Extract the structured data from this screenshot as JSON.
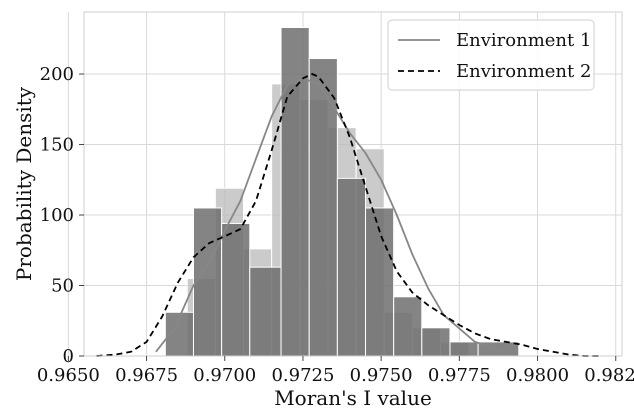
{
  "chart_data": {
    "type": "bar",
    "xlabel": "Moran's I value",
    "ylabel": "Probability Density",
    "xlim": [
      0.9655,
      0.9827
    ],
    "ylim": [
      0,
      244
    ],
    "x_ticks": [
      0.965,
      0.9675,
      0.97,
      0.9725,
      0.975,
      0.9775,
      0.98,
      0.9825
    ],
    "x_tick_labels": [
      "0.9650",
      "0.9675",
      "0.9700",
      "0.9725",
      "0.9750",
      "0.9775",
      "0.9800",
      "0.9825"
    ],
    "y_ticks": [
      0,
      50,
      100,
      150,
      200
    ],
    "y_tick_labels": [
      "0",
      "50",
      "100",
      "150",
      "200"
    ],
    "grid": true,
    "legend": {
      "position": "upper-right",
      "items": [
        "Environment 1",
        "Environment 2"
      ]
    },
    "series": [
      {
        "name": "Environment 1",
        "color": "#b9b9b9",
        "bars": [
          {
            "x0": 0.9688,
            "x1": 0.9697,
            "value": 55
          },
          {
            "x0": 0.9697,
            "x1": 0.9706,
            "value": 119
          },
          {
            "x0": 0.9706,
            "x1": 0.9715,
            "value": 76
          },
          {
            "x0": 0.9715,
            "x1": 0.9724,
            "value": 193
          },
          {
            "x0": 0.9724,
            "x1": 0.9733,
            "value": 182
          },
          {
            "x0": 0.9733,
            "x1": 0.9742,
            "value": 162
          },
          {
            "x0": 0.9742,
            "x1": 0.9751,
            "value": 147
          },
          {
            "x0": 0.9751,
            "x1": 0.976,
            "value": 31
          },
          {
            "x0": 0.976,
            "x1": 0.9769,
            "value": 20
          },
          {
            "x0": 0.9769,
            "x1": 0.9778,
            "value": 10
          }
        ],
        "kde": {
          "x": [
            0.9678,
            0.9684,
            0.969,
            0.9696,
            0.97,
            0.9705,
            0.971,
            0.9715,
            0.972,
            0.9725,
            0.973,
            0.9735,
            0.974,
            0.9745,
            0.975,
            0.9755,
            0.976,
            0.9765,
            0.977,
            0.978,
            0.979
          ],
          "y": [
            3,
            20,
            50,
            70,
            89,
            110,
            140,
            170,
            192,
            197,
            193,
            176,
            158,
            144,
            125,
            100,
            72,
            48,
            29,
            10,
            3
          ]
        }
      },
      {
        "name": "Environment 2",
        "color": "#6f6f6f",
        "bars": [
          {
            "x0": 0.9681,
            "x1": 0.969,
            "value": 31
          },
          {
            "x0": 0.969,
            "x1": 0.9699,
            "value": 105
          },
          {
            "x0": 0.9699,
            "x1": 0.9708,
            "value": 94
          },
          {
            "x0": 0.9708,
            "x1": 0.9718,
            "value": 63
          },
          {
            "x0": 0.9718,
            "x1": 0.9727,
            "value": 233
          },
          {
            "x0": 0.9727,
            "x1": 0.9736,
            "value": 211
          },
          {
            "x0": 0.9736,
            "x1": 0.9745,
            "value": 126
          },
          {
            "x0": 0.9745,
            "x1": 0.9754,
            "value": 105
          },
          {
            "x0": 0.9754,
            "x1": 0.9763,
            "value": 42
          },
          {
            "x0": 0.9763,
            "x1": 0.9772,
            "value": 20
          },
          {
            "x0": 0.9772,
            "x1": 0.9781,
            "value": 10
          },
          {
            "x0": 0.9781,
            "x1": 0.9794,
            "value": 10
          }
        ],
        "kde": {
          "x": [
            0.9659,
            0.9665,
            0.967,
            0.9675,
            0.968,
            0.9685,
            0.969,
            0.9695,
            0.97,
            0.9705,
            0.971,
            0.9715,
            0.972,
            0.9725,
            0.9728,
            0.973,
            0.9735,
            0.974,
            0.9745,
            0.975,
            0.9755,
            0.976,
            0.9765,
            0.977,
            0.9775,
            0.978,
            0.9785,
            0.979,
            0.9795,
            0.98,
            0.9805,
            0.981,
            0.9815,
            0.982
          ],
          "y": [
            0,
            1,
            3,
            10,
            28,
            52,
            70,
            80,
            85,
            90,
            110,
            146,
            184,
            197,
            200,
            198,
            183,
            155,
            120,
            85,
            60,
            45,
            36,
            29,
            22,
            16,
            12,
            10,
            8,
            5,
            3,
            1,
            0,
            0
          ]
        }
      }
    ]
  }
}
